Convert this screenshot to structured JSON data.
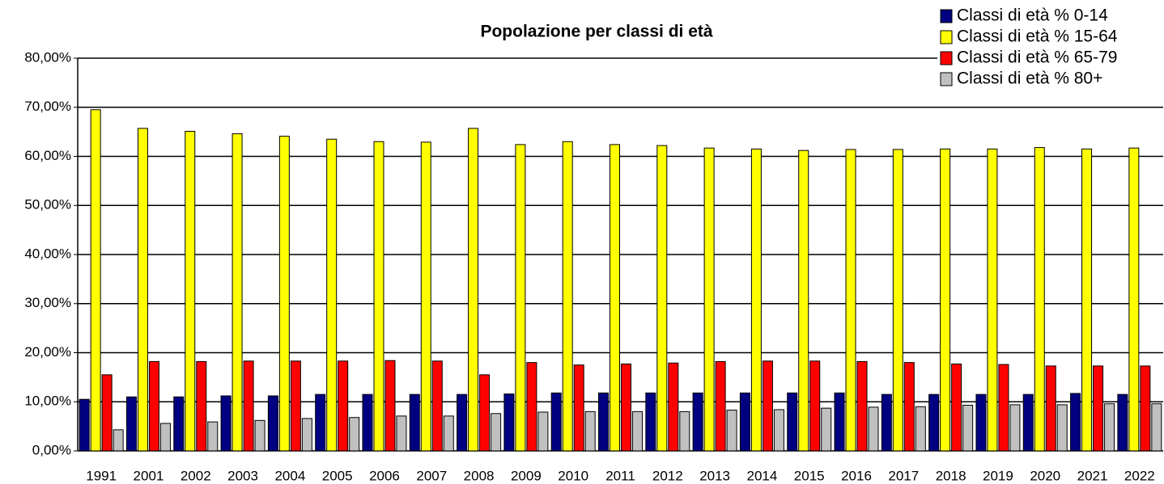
{
  "chart_data": {
    "type": "bar",
    "title": "Popolazione per classi di età",
    "categories": [
      "1991",
      "2001",
      "2002",
      "2003",
      "2004",
      "2005",
      "2006",
      "2007",
      "2008",
      "2009",
      "2010",
      "2011",
      "2012",
      "2013",
      "2014",
      "2015",
      "2016",
      "2017",
      "2018",
      "2019",
      "2020",
      "2021",
      "2022"
    ],
    "series": [
      {
        "name": "Classi di età % 0-14",
        "color": "#000080",
        "values": [
          10.5,
          11.0,
          11.0,
          11.2,
          11.2,
          11.5,
          11.5,
          11.5,
          11.5,
          11.6,
          11.8,
          11.8,
          11.8,
          11.8,
          11.8,
          11.8,
          11.8,
          11.5,
          11.5,
          11.5,
          11.5,
          11.7,
          11.5
        ]
      },
      {
        "name": "Classi di età % 15-64",
        "color": "#ffff00",
        "values": [
          69.5,
          65.7,
          65.1,
          64.6,
          64.1,
          63.5,
          63.0,
          62.9,
          65.7,
          62.4,
          63.0,
          62.4,
          62.2,
          61.7,
          61.5,
          61.2,
          61.4,
          61.4,
          61.5,
          61.5,
          61.8,
          61.5,
          61.7
        ]
      },
      {
        "name": "Classi di età % 65-79",
        "color": "#ff0000",
        "values": [
          15.5,
          18.2,
          18.2,
          18.3,
          18.3,
          18.3,
          18.4,
          18.3,
          15.5,
          18.0,
          17.5,
          17.7,
          17.9,
          18.2,
          18.3,
          18.3,
          18.2,
          18.0,
          17.7,
          17.6,
          17.3,
          17.3,
          17.3
        ]
      },
      {
        "name": "Classi di età % 80+",
        "color": "#c0c0c0",
        "values": [
          4.3,
          5.6,
          5.9,
          6.2,
          6.6,
          6.8,
          7.1,
          7.1,
          7.6,
          7.9,
          8.0,
          8.0,
          8.0,
          8.3,
          8.4,
          8.7,
          8.9,
          9.0,
          9.3,
          9.4,
          9.4,
          9.6,
          9.6
        ]
      }
    ],
    "ylim": [
      0,
      80
    ],
    "yticks": [
      {
        "value": 0,
        "label": "0,00%"
      },
      {
        "value": 10,
        "label": "10,00%"
      },
      {
        "value": 20,
        "label": "20,00%"
      },
      {
        "value": 30,
        "label": "30,00%"
      },
      {
        "value": 40,
        "label": "40,00%"
      },
      {
        "value": 50,
        "label": "50,00%"
      },
      {
        "value": 60,
        "label": "60,00%"
      },
      {
        "value": 70,
        "label": "70,00%"
      },
      {
        "value": 80,
        "label": "80,00%"
      }
    ],
    "grid": true,
    "legend": "top-right"
  }
}
